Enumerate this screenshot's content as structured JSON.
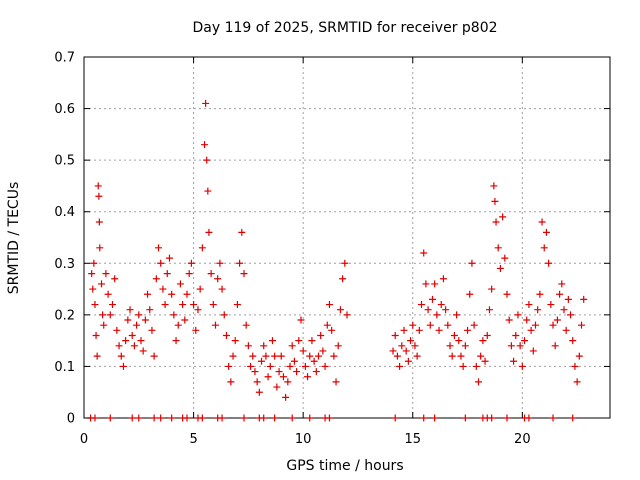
{
  "chart_data": {
    "type": "scatter",
    "title": "Day 119 of 2025, SRMTID for receiver p802",
    "xlabel": "GPS time / hours",
    "ylabel": "SRMTID / TECUs",
    "xlim": [
      0,
      24
    ],
    "ylim": [
      0,
      0.7
    ],
    "xticks": [
      "0",
      "5",
      "10",
      "15",
      "20"
    ],
    "xtick_values": [
      0,
      5,
      10,
      15,
      20
    ],
    "yticks": [
      "0",
      "0.1",
      "0.2",
      "0.3",
      "0.4",
      "0.5",
      "0.6",
      "0.7"
    ],
    "ytick_values": [
      0,
      0.1,
      0.2,
      0.3,
      0.4,
      0.5,
      0.6,
      0.7
    ],
    "grid": true,
    "marker": "+",
    "color": "#e00000",
    "series": [
      {
        "name": "p802",
        "points": [
          [
            0.35,
            0.28
          ],
          [
            0.4,
            0.25
          ],
          [
            0.45,
            0.3
          ],
          [
            0.5,
            0.22
          ],
          [
            0.55,
            0.16
          ],
          [
            0.6,
            0.12
          ],
          [
            0.65,
            0.45
          ],
          [
            0.68,
            0.43
          ],
          [
            0.7,
            0.38
          ],
          [
            0.72,
            0.33
          ],
          [
            0.8,
            0.26
          ],
          [
            0.85,
            0.2
          ],
          [
            0.9,
            0.18
          ],
          [
            1.0,
            0.28
          ],
          [
            1.1,
            0.24
          ],
          [
            1.2,
            0.2
          ],
          [
            1.3,
            0.22
          ],
          [
            1.4,
            0.27
          ],
          [
            1.5,
            0.17
          ],
          [
            1.6,
            0.14
          ],
          [
            1.7,
            0.12
          ],
          [
            1.8,
            0.1
          ],
          [
            1.9,
            0.15
          ],
          [
            2.0,
            0.19
          ],
          [
            2.1,
            0.21
          ],
          [
            2.2,
            0.16
          ],
          [
            2.3,
            0.14
          ],
          [
            2.4,
            0.18
          ],
          [
            2.5,
            0.2
          ],
          [
            2.6,
            0.15
          ],
          [
            2.7,
            0.13
          ],
          [
            2.8,
            0.19
          ],
          [
            2.9,
            0.24
          ],
          [
            3.0,
            0.21
          ],
          [
            3.1,
            0.17
          ],
          [
            3.2,
            0.12
          ],
          [
            3.3,
            0.27
          ],
          [
            3.4,
            0.33
          ],
          [
            3.5,
            0.3
          ],
          [
            3.6,
            0.25
          ],
          [
            3.7,
            0.22
          ],
          [
            3.8,
            0.28
          ],
          [
            3.9,
            0.31
          ],
          [
            4.0,
            0.24
          ],
          [
            4.1,
            0.2
          ],
          [
            4.2,
            0.15
          ],
          [
            4.3,
            0.18
          ],
          [
            4.4,
            0.26
          ],
          [
            4.5,
            0.22
          ],
          [
            4.6,
            0.19
          ],
          [
            4.7,
            0.24
          ],
          [
            4.8,
            0.28
          ],
          [
            4.9,
            0.3
          ],
          [
            5.0,
            0.22
          ],
          [
            5.1,
            0.17
          ],
          [
            5.2,
            0.21
          ],
          [
            5.3,
            0.25
          ],
          [
            5.4,
            0.33
          ],
          [
            5.5,
            0.53
          ],
          [
            5.55,
            0.61
          ],
          [
            5.6,
            0.5
          ],
          [
            5.65,
            0.44
          ],
          [
            5.7,
            0.36
          ],
          [
            5.8,
            0.28
          ],
          [
            5.9,
            0.22
          ],
          [
            6.0,
            0.18
          ],
          [
            6.1,
            0.27
          ],
          [
            6.2,
            0.3
          ],
          [
            6.3,
            0.25
          ],
          [
            6.4,
            0.2
          ],
          [
            6.5,
            0.16
          ],
          [
            6.6,
            0.1
          ],
          [
            6.7,
            0.07
          ],
          [
            6.8,
            0.12
          ],
          [
            6.9,
            0.15
          ],
          [
            7.0,
            0.22
          ],
          [
            7.1,
            0.3
          ],
          [
            7.2,
            0.36
          ],
          [
            7.3,
            0.28
          ],
          [
            7.4,
            0.18
          ],
          [
            7.5,
            0.14
          ],
          [
            7.6,
            0.1
          ],
          [
            7.7,
            0.12
          ],
          [
            7.8,
            0.09
          ],
          [
            7.9,
            0.07
          ],
          [
            8.0,
            0.05
          ],
          [
            8.1,
            0.11
          ],
          [
            8.2,
            0.14
          ],
          [
            8.3,
            0.12
          ],
          [
            8.4,
            0.08
          ],
          [
            8.5,
            0.1
          ],
          [
            8.6,
            0.15
          ],
          [
            8.7,
            0.12
          ],
          [
            8.8,
            0.06
          ],
          [
            8.9,
            0.09
          ],
          [
            9.0,
            0.12
          ],
          [
            9.1,
            0.08
          ],
          [
            9.2,
            0.04
          ],
          [
            9.3,
            0.07
          ],
          [
            9.4,
            0.1
          ],
          [
            9.5,
            0.14
          ],
          [
            9.6,
            0.11
          ],
          [
            9.7,
            0.09
          ],
          [
            9.8,
            0.15
          ],
          [
            9.9,
            0.19
          ],
          [
            10.0,
            0.13
          ],
          [
            10.1,
            0.1
          ],
          [
            10.2,
            0.08
          ],
          [
            10.3,
            0.12
          ],
          [
            10.4,
            0.15
          ],
          [
            10.5,
            0.11
          ],
          [
            10.6,
            0.09
          ],
          [
            10.7,
            0.12
          ],
          [
            10.8,
            0.16
          ],
          [
            10.9,
            0.13
          ],
          [
            11.0,
            0.1
          ],
          [
            11.1,
            0.18
          ],
          [
            11.2,
            0.22
          ],
          [
            11.3,
            0.17
          ],
          [
            11.4,
            0.12
          ],
          [
            11.5,
            0.07
          ],
          [
            11.6,
            0.14
          ],
          [
            11.7,
            0.21
          ],
          [
            11.8,
            0.27
          ],
          [
            11.9,
            0.3
          ],
          [
            12.0,
            0.2
          ],
          [
            14.1,
            0.13
          ],
          [
            14.2,
            0.16
          ],
          [
            14.3,
            0.12
          ],
          [
            14.4,
            0.1
          ],
          [
            14.5,
            0.14
          ],
          [
            14.6,
            0.17
          ],
          [
            14.7,
            0.13
          ],
          [
            14.8,
            0.11
          ],
          [
            14.9,
            0.15
          ],
          [
            15.0,
            0.18
          ],
          [
            15.1,
            0.14
          ],
          [
            15.2,
            0.12
          ],
          [
            15.3,
            0.17
          ],
          [
            15.4,
            0.22
          ],
          [
            15.5,
            0.32
          ],
          [
            15.6,
            0.26
          ],
          [
            15.7,
            0.21
          ],
          [
            15.8,
            0.18
          ],
          [
            15.9,
            0.23
          ],
          [
            16.0,
            0.26
          ],
          [
            16.1,
            0.2
          ],
          [
            16.2,
            0.17
          ],
          [
            16.3,
            0.22
          ],
          [
            16.4,
            0.27
          ],
          [
            16.5,
            0.21
          ],
          [
            16.6,
            0.18
          ],
          [
            16.7,
            0.14
          ],
          [
            16.8,
            0.12
          ],
          [
            16.9,
            0.16
          ],
          [
            17.0,
            0.2
          ],
          [
            17.1,
            0.15
          ],
          [
            17.2,
            0.12
          ],
          [
            17.3,
            0.1
          ],
          [
            17.4,
            0.14
          ],
          [
            17.5,
            0.17
          ],
          [
            17.6,
            0.24
          ],
          [
            17.7,
            0.3
          ],
          [
            17.8,
            0.18
          ],
          [
            17.9,
            0.1
          ],
          [
            18.0,
            0.07
          ],
          [
            18.1,
            0.12
          ],
          [
            18.2,
            0.15
          ],
          [
            18.3,
            0.11
          ],
          [
            18.4,
            0.16
          ],
          [
            18.5,
            0.21
          ],
          [
            18.6,
            0.25
          ],
          [
            18.7,
            0.45
          ],
          [
            18.75,
            0.42
          ],
          [
            18.8,
            0.38
          ],
          [
            18.9,
            0.33
          ],
          [
            19.0,
            0.29
          ],
          [
            19.1,
            0.39
          ],
          [
            19.2,
            0.31
          ],
          [
            19.3,
            0.24
          ],
          [
            19.4,
            0.19
          ],
          [
            19.5,
            0.14
          ],
          [
            19.6,
            0.11
          ],
          [
            19.7,
            0.16
          ],
          [
            19.8,
            0.2
          ],
          [
            19.9,
            0.14
          ],
          [
            20.0,
            0.1
          ],
          [
            20.1,
            0.15
          ],
          [
            20.2,
            0.19
          ],
          [
            20.3,
            0.22
          ],
          [
            20.4,
            0.17
          ],
          [
            20.5,
            0.13
          ],
          [
            20.6,
            0.18
          ],
          [
            20.7,
            0.21
          ],
          [
            20.8,
            0.24
          ],
          [
            20.9,
            0.38
          ],
          [
            21.0,
            0.33
          ],
          [
            21.1,
            0.36
          ],
          [
            21.2,
            0.3
          ],
          [
            21.3,
            0.22
          ],
          [
            21.4,
            0.18
          ],
          [
            21.5,
            0.14
          ],
          [
            21.6,
            0.19
          ],
          [
            21.7,
            0.24
          ],
          [
            21.8,
            0.26
          ],
          [
            21.9,
            0.21
          ],
          [
            22.0,
            0.17
          ],
          [
            22.1,
            0.23
          ],
          [
            22.2,
            0.2
          ],
          [
            22.3,
            0.15
          ],
          [
            22.4,
            0.1
          ],
          [
            22.5,
            0.07
          ],
          [
            22.6,
            0.12
          ],
          [
            22.7,
            0.18
          ],
          [
            22.8,
            0.23
          ]
        ]
      },
      {
        "name": "zero-line markers",
        "points": [
          [
            0.3,
            0
          ],
          [
            0.5,
            0
          ],
          [
            1.2,
            0
          ],
          [
            2.2,
            0
          ],
          [
            2.5,
            0
          ],
          [
            3.2,
            0
          ],
          [
            3.5,
            0
          ],
          [
            4.0,
            0
          ],
          [
            4.5,
            0
          ],
          [
            4.7,
            0
          ],
          [
            5.2,
            0
          ],
          [
            5.4,
            0
          ],
          [
            6.1,
            0
          ],
          [
            6.3,
            0
          ],
          [
            7.3,
            0
          ],
          [
            8.0,
            0
          ],
          [
            8.2,
            0
          ],
          [
            8.7,
            0
          ],
          [
            9.5,
            0
          ],
          [
            10.3,
            0
          ],
          [
            11.0,
            0
          ],
          [
            11.2,
            0
          ],
          [
            14.2,
            0
          ],
          [
            15.5,
            0
          ],
          [
            16.0,
            0
          ],
          [
            17.4,
            0
          ],
          [
            18.2,
            0
          ],
          [
            18.4,
            0
          ],
          [
            18.6,
            0
          ],
          [
            19.3,
            0
          ],
          [
            20.1,
            0
          ],
          [
            20.3,
            0
          ],
          [
            21.4,
            0
          ],
          [
            22.3,
            0
          ]
        ]
      }
    ]
  }
}
